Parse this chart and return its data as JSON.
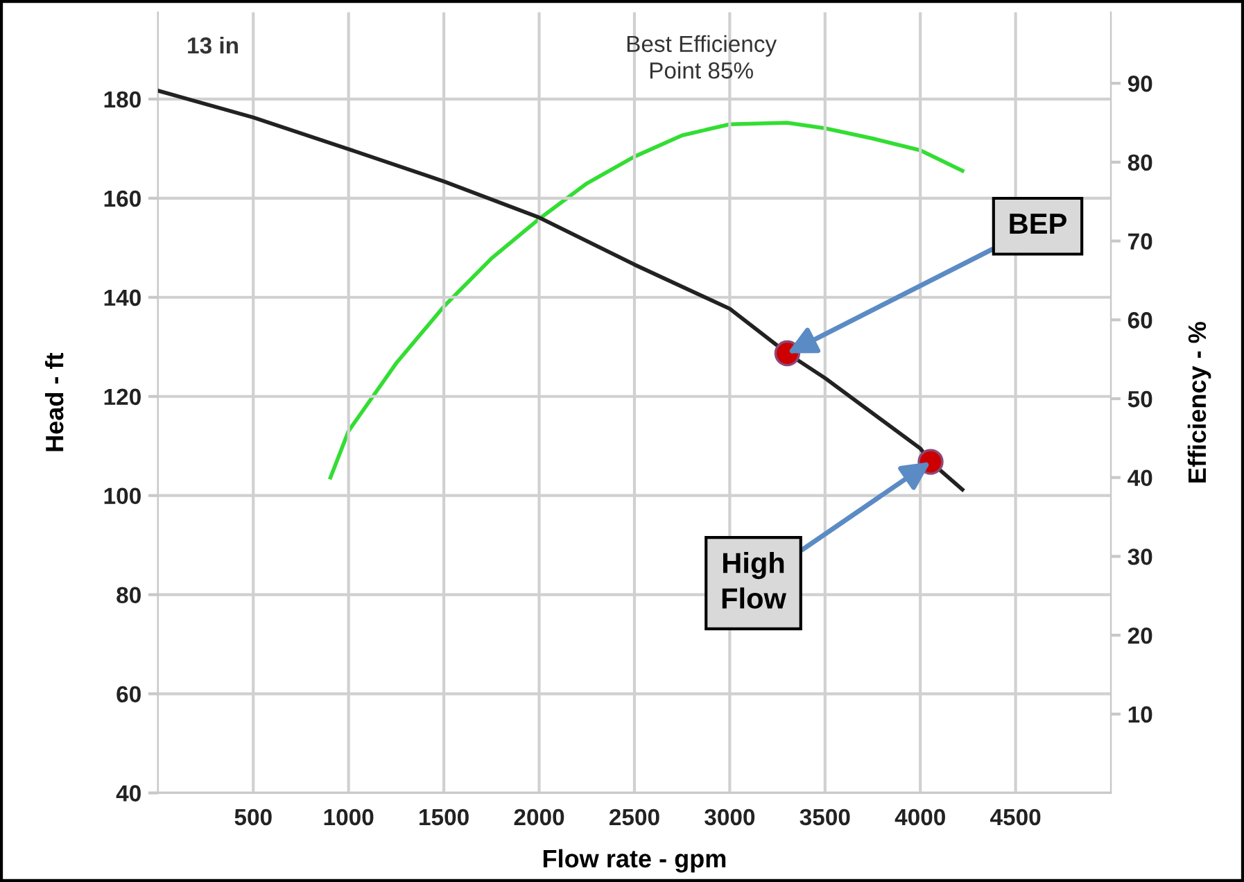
{
  "chart_data": {
    "type": "line",
    "xlabel": "Flow rate - gpm",
    "ylabel": "Head - ft",
    "y2label": "Efficiency - %",
    "xlim": [
      0,
      5000
    ],
    "xticks": [
      500,
      1000,
      1500,
      2000,
      2500,
      3000,
      3500,
      4000,
      4500
    ],
    "ylim": [
      40,
      197.5
    ],
    "yticks": [
      40,
      60,
      80,
      100,
      120,
      140,
      160,
      180
    ],
    "y2lim": [
      0,
      99
    ],
    "y2ticks": [
      10,
      20,
      30,
      40,
      50,
      60,
      70,
      80,
      90
    ],
    "grid": true,
    "legend": false,
    "series": [
      {
        "type": "line",
        "color": "#222222",
        "x": [
          0,
          500,
          1000,
          1500,
          2000,
          2500,
          3000,
          3302,
          3500,
          4000,
          4054,
          4221
        ],
        "values": [
          181.7,
          176.3,
          169.9,
          163.4,
          156.1,
          146.6,
          137.7,
          128.7,
          123.7,
          109.5,
          106.8,
          101.2
        ]
      },
      {
        "type": "line",
        "color": "#33dd33",
        "axis": "y2",
        "x": [
          905,
          1000,
          1250,
          1500,
          1750,
          2000,
          2250,
          2500,
          2750,
          3000,
          3300,
          3500,
          3750,
          4000,
          4221
        ],
        "values": [
          40.0,
          45.9,
          54.5,
          61.7,
          67.8,
          72.8,
          77.3,
          80.7,
          83.4,
          84.8,
          85.0,
          84.3,
          83.0,
          81.5,
          78.9
        ]
      },
      {
        "type": "scatter",
        "color": "#cc0000",
        "marker": "circle",
        "x": [
          3302,
          4054
        ],
        "values": [
          128.7,
          106.8
        ]
      }
    ],
    "annotations": [
      "13 in",
      "Best Efficiency\nPoint 85%",
      {
        "text": "BEP",
        "x": 3302,
        "y": 128.7
      },
      {
        "text": "High\nFlow",
        "x": 4054,
        "y": 106.8
      }
    ]
  }
}
